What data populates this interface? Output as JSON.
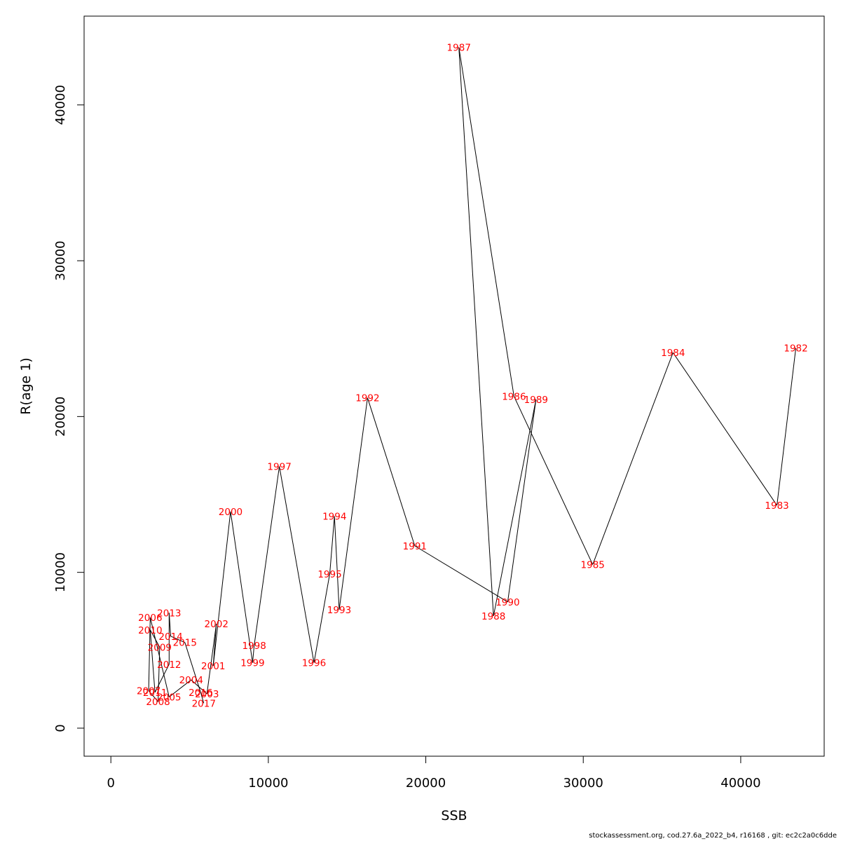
{
  "chart_data": {
    "type": "line",
    "xlabel": "SSB",
    "ylabel": "R(age 1)",
    "xlim": [
      -1700,
      45300
    ],
    "ylim": [
      -1800,
      45700
    ],
    "x_ticks": [
      0,
      10000,
      20000,
      30000,
      40000
    ],
    "y_ticks": [
      0,
      10000,
      20000,
      30000,
      40000
    ],
    "x_tick_labels": [
      "0",
      "10000",
      "20000",
      "30000",
      "40000"
    ],
    "y_tick_labels": [
      "0",
      "10000",
      "20000",
      "30000",
      "40000"
    ],
    "grid": false,
    "line_color": "#000000",
    "label_color": "#ff0000",
    "points": [
      {
        "year": "1982",
        "x": 43500,
        "y": 24400
      },
      {
        "year": "1983",
        "x": 42300,
        "y": 14300
      },
      {
        "year": "1984",
        "x": 35700,
        "y": 24100
      },
      {
        "year": "1985",
        "x": 30600,
        "y": 10500
      },
      {
        "year": "1986",
        "x": 25600,
        "y": 21300
      },
      {
        "year": "1987",
        "x": 22100,
        "y": 43700
      },
      {
        "year": "1988",
        "x": 24300,
        "y": 7200
      },
      {
        "year": "1989",
        "x": 27000,
        "y": 21100
      },
      {
        "year": "1990",
        "x": 25200,
        "y": 8100
      },
      {
        "year": "1991",
        "x": 19300,
        "y": 11700
      },
      {
        "year": "1992",
        "x": 16300,
        "y": 21200
      },
      {
        "year": "1993",
        "x": 14500,
        "y": 7600
      },
      {
        "year": "1994",
        "x": 14200,
        "y": 13600
      },
      {
        "year": "1995",
        "x": 13900,
        "y": 9900
      },
      {
        "year": "1996",
        "x": 12900,
        "y": 4200
      },
      {
        "year": "1997",
        "x": 10700,
        "y": 16800
      },
      {
        "year": "1998",
        "x": 9100,
        "y": 5300
      },
      {
        "year": "1999",
        "x": 9000,
        "y": 4200
      },
      {
        "year": "2000",
        "x": 7600,
        "y": 13900
      },
      {
        "year": "2001",
        "x": 6500,
        "y": 4000
      },
      {
        "year": "2002",
        "x": 6700,
        "y": 6700
      },
      {
        "year": "2003",
        "x": 6100,
        "y": 2200
      },
      {
        "year": "2004",
        "x": 5100,
        "y": 3100
      },
      {
        "year": "2005",
        "x": 3700,
        "y": 2000
      },
      {
        "year": "2006",
        "x": 2500,
        "y": 7100
      },
      {
        "year": "2007",
        "x": 2400,
        "y": 2400
      },
      {
        "year": "2008",
        "x": 3000,
        "y": 1700
      },
      {
        "year": "2009",
        "x": 3100,
        "y": 5200
      },
      {
        "year": "2010",
        "x": 2500,
        "y": 6300
      },
      {
        "year": "2011",
        "x": 2800,
        "y": 2300
      },
      {
        "year": "2012",
        "x": 3700,
        "y": 4100
      },
      {
        "year": "2013",
        "x": 3700,
        "y": 7400
      },
      {
        "year": "2014",
        "x": 3800,
        "y": 5900
      },
      {
        "year": "2015",
        "x": 4700,
        "y": 5500
      },
      {
        "year": "2016",
        "x": 5700,
        "y": 2300
      },
      {
        "year": "2017",
        "x": 5900,
        "y": 1600
      }
    ]
  },
  "footer": "stockassessment.org, cod.27.6a_2022_b4, r16168 , git: ec2c2a0c6dde"
}
